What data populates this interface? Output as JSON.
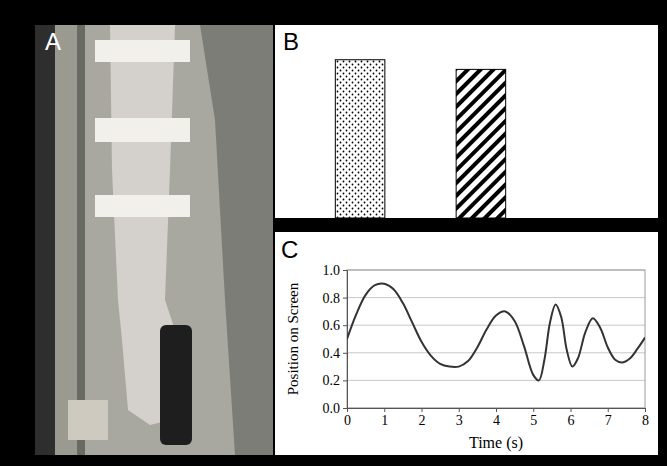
{
  "chart_data": [
    {
      "type": "image",
      "panel": "A"
    },
    {
      "type": "bar",
      "panel": "B",
      "categories": [
        null,
        null
      ],
      "values": [
        0.82,
        0.77
      ],
      "ylim": [
        0,
        1
      ],
      "tick_labels": false
    },
    {
      "type": "line",
      "panel": "C",
      "x_label": "Time (s)",
      "y_label": "Position on Screen",
      "x": [
        0,
        0.25,
        0.5,
        0.75,
        1.0,
        1.25,
        1.5,
        1.75,
        2.0,
        2.25,
        2.5,
        2.75,
        3.0,
        3.25,
        3.5,
        3.75,
        4.0,
        4.25,
        4.5,
        4.75,
        5.0,
        5.15,
        5.3,
        5.45,
        5.6,
        5.75,
        5.9,
        6.05,
        6.2,
        6.4,
        6.6,
        6.8,
        7.0,
        7.2,
        7.4,
        7.6,
        7.8,
        8.0
      ],
      "values": [
        0.5,
        0.68,
        0.82,
        0.89,
        0.9,
        0.86,
        0.76,
        0.62,
        0.48,
        0.38,
        0.32,
        0.3,
        0.3,
        0.34,
        0.44,
        0.57,
        0.67,
        0.7,
        0.63,
        0.45,
        0.24,
        0.2,
        0.35,
        0.62,
        0.75,
        0.66,
        0.42,
        0.3,
        0.36,
        0.55,
        0.65,
        0.58,
        0.44,
        0.35,
        0.33,
        0.36,
        0.43,
        0.51
      ],
      "xlim": [
        0,
        8
      ],
      "xticks": [
        0,
        1,
        2,
        3,
        4,
        5,
        6,
        7,
        8
      ],
      "ylim": [
        0,
        1
      ],
      "yticks": [
        {
          "value": 0,
          "label": "0.0"
        },
        {
          "value": 0.2,
          "label": "0.2"
        },
        {
          "value": 0.4,
          "label": "0.4"
        },
        {
          "value": 0.6,
          "label": "0.6"
        },
        {
          "value": 0.8,
          "label": "0.8"
        },
        {
          "value": 1.0,
          "label": "1.0"
        }
      ],
      "grid": true,
      "color": "#333333"
    }
  ]
}
